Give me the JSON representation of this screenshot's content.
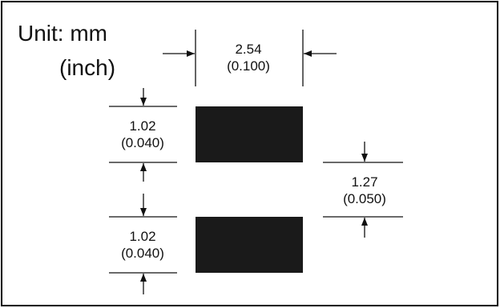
{
  "diagram": {
    "unit_line1": "Unit: mm",
    "unit_line2": "(inch)",
    "pad_width": {
      "mm": "2.54",
      "inch": "(0.100)"
    },
    "pad_height_top": {
      "mm": "1.02",
      "inch": "(0.040)"
    },
    "pad_height_bottom": {
      "mm": "1.02",
      "inch": "(0.040)"
    },
    "pad_gap": {
      "mm": "1.27",
      "inch": "(0.050)"
    },
    "colors": {
      "pad": "#1a1a1a",
      "line": "#111111",
      "border": "#000000"
    }
  }
}
